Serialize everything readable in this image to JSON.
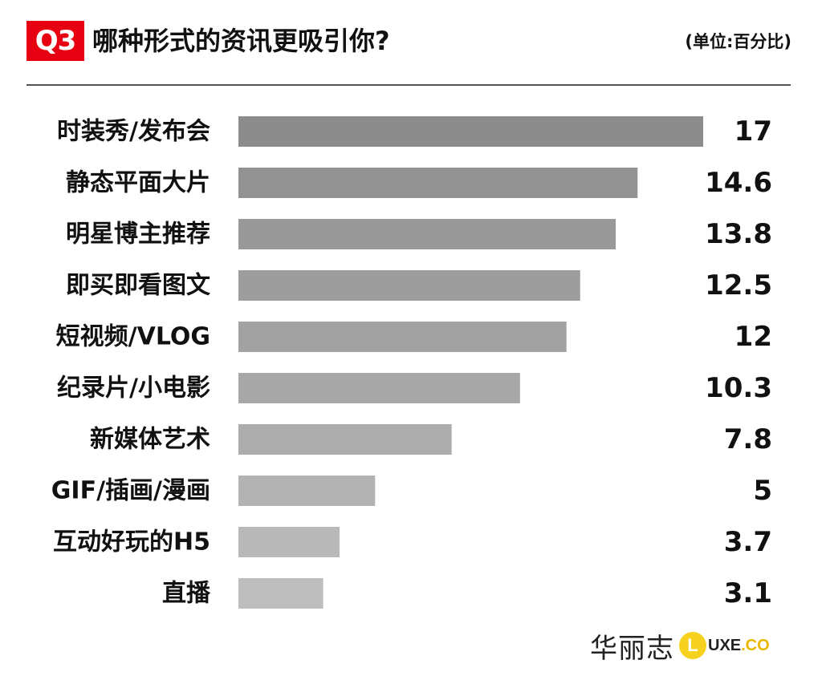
{
  "header": {
    "badge": "Q3",
    "title": "哪种形式的资讯更吸引你?",
    "unit": "(单位:百分比)"
  },
  "chart_data": {
    "type": "bar",
    "orientation": "horizontal",
    "categories": [
      "时装秀/发布会",
      "静态平面大片",
      "明星博主推荐",
      "即买即看图文",
      "短视频/VLOG",
      "纪录片/小电影",
      "新媒体艺术",
      "GIF/插画/漫画",
      "互动好玩的H5",
      "直播"
    ],
    "values": [
      17,
      14.6,
      13.8,
      12.5,
      12,
      10.3,
      7.8,
      5,
      3.7,
      3.1
    ],
    "value_labels": [
      "17",
      "14.6",
      "13.8",
      "12.5",
      "12",
      "10.3",
      "7.8",
      "5",
      "3.7",
      "3.1"
    ],
    "title": "哪种形式的资讯更吸引你?",
    "xlim": [
      0,
      17
    ],
    "grid": false,
    "legend": "none",
    "bar_colors": [
      "#8c8c8c",
      "#929292",
      "#989898",
      "#9d9d9d",
      "#a2a2a2",
      "#a8a8a8",
      "#adadad",
      "#b3b3b3",
      "#b8b8b8",
      "#bebebe"
    ]
  },
  "brand": {
    "chinese": "华丽志",
    "logo_letter": "L",
    "latin": "UXE",
    "suffix": ".CO",
    "accent_color": "#f6d21e"
  }
}
